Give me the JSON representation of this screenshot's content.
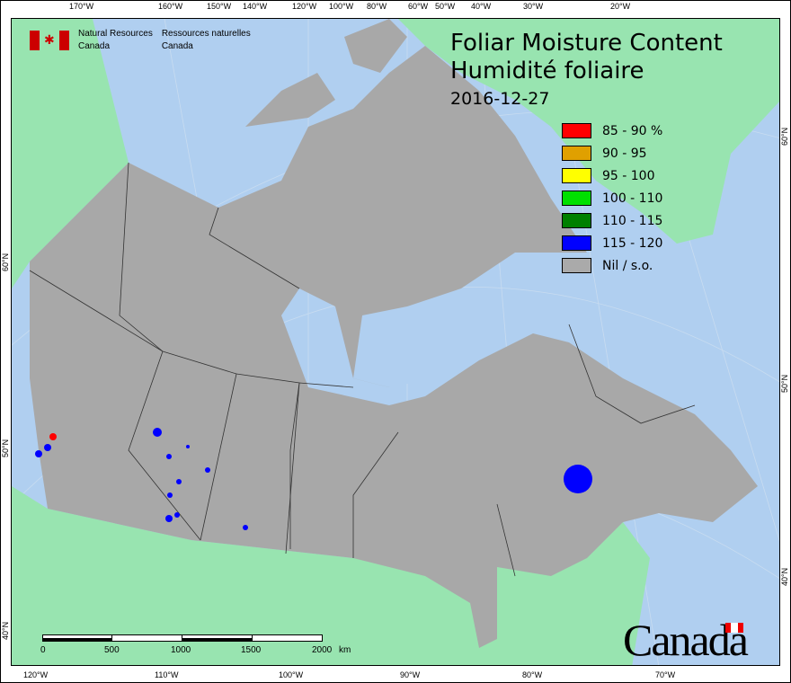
{
  "title": {
    "line1": "Foliar Moisture Content",
    "line2": "Humidité foliaire",
    "date": "2016-12-27"
  },
  "agency": {
    "en_line1": "Natural Resources",
    "en_line2": "Canada",
    "fr_line1": "Ressources naturelles",
    "fr_line2": "Canada"
  },
  "wordmark": "Canada",
  "legend": [
    {
      "label": "85 - 90 %",
      "color": "#ff0000"
    },
    {
      "label": "90 - 95",
      "color": "#e0a000"
    },
    {
      "label": "95 - 100",
      "color": "#ffff00"
    },
    {
      "label": "100 - 110",
      "color": "#00e000"
    },
    {
      "label": "110 - 115",
      "color": "#008000"
    },
    {
      "label": "115 - 120",
      "color": "#0000ff"
    },
    {
      "label": "Nil / s.o.",
      "color": "#aaaaaa"
    }
  ],
  "colors": {
    "water": "#b0cff0",
    "land_other": "#98e4b0",
    "land_canada": "#a8a8a8"
  },
  "top_axis": [
    "170°W",
    "160°W",
    "150°W",
    "140°W",
    "120°W",
    "100°W",
    "80°W",
    "60°W",
    "50°W",
    "40°W",
    "30°W",
    "20°W"
  ],
  "bottom_axis": [
    "120°W",
    "110°W",
    "100°W",
    "90°W",
    "80°W",
    "70°W"
  ],
  "left_axis": [
    "60°N",
    "50°N",
    "40°N"
  ],
  "right_axis": [
    "60°N",
    "50°N",
    "40°N"
  ],
  "scalebar": {
    "labels": [
      "0",
      "500",
      "1000",
      "1500",
      "2000"
    ],
    "unit": "km"
  }
}
